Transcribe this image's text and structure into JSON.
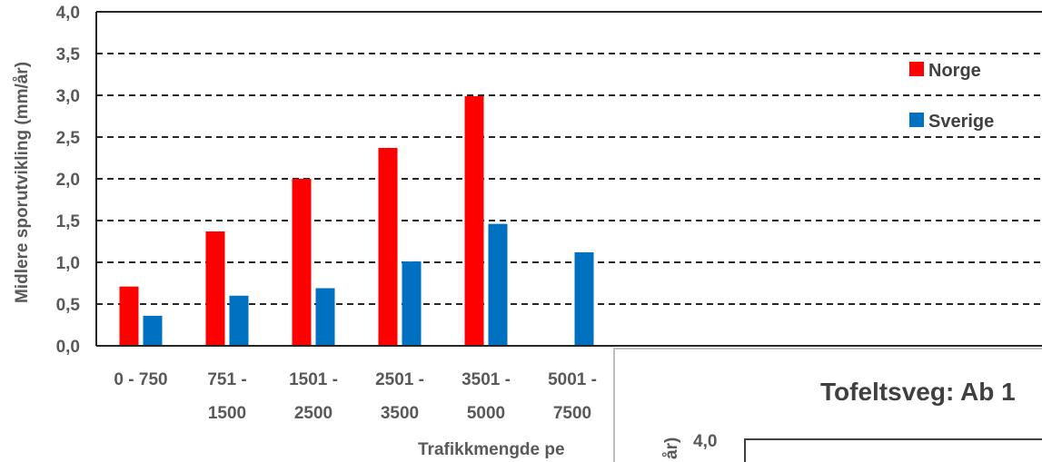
{
  "chart_data": {
    "type": "bar",
    "categories": [
      [
        "0 - 750"
      ],
      [
        "751 -",
        "1500"
      ],
      [
        "1501 -",
        "2500"
      ],
      [
        "2501 -",
        "3500"
      ],
      [
        "3501 -",
        "5000"
      ],
      [
        "5001 -",
        "7500"
      ]
    ],
    "series": [
      {
        "name": "Norge",
        "color": "#ff0000",
        "values": [
          0.71,
          1.37,
          2.0,
          2.37,
          2.99,
          null
        ]
      },
      {
        "name": "Sverige",
        "color": "#0070c0",
        "values": [
          0.36,
          0.6,
          0.69,
          1.01,
          1.46,
          1.12
        ]
      }
    ],
    "ylabel": "Midlere sporutvikling (mm/år)",
    "xlabel": "Trafikkmengde pe",
    "ylim": [
      0,
      4.0
    ],
    "yticks": [
      "0,0",
      "0,5",
      "1,0",
      "1,5",
      "2,0",
      "2,5",
      "3,0",
      "3,5",
      "4,0"
    ],
    "grid": "dashed horizontal",
    "legend": "right"
  },
  "inset": {
    "title": "Tofeltsveg: Ab 1",
    "ytick_top": "4,0",
    "ylabel_fragment": "år)"
  }
}
